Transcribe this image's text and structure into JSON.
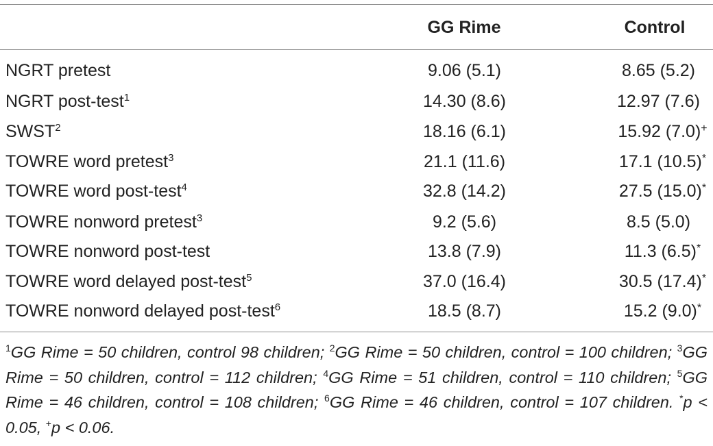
{
  "table": {
    "headers": [
      "",
      "GG Rime",
      "Control"
    ],
    "rows": [
      {
        "label": "NGRT pretest",
        "sup": "",
        "gg": "9.06 (5.1)",
        "control": "8.65 (5.2)",
        "mark": ""
      },
      {
        "label": "NGRT post-test",
        "sup": "1",
        "gg": "14.30 (8.6)",
        "control": "12.97 (7.6)",
        "mark": ""
      },
      {
        "label": "SWST",
        "sup": "2",
        "gg": "18.16 (6.1)",
        "control": "15.92 (7.0)",
        "mark": "+"
      },
      {
        "label": "TOWRE word pretest",
        "sup": "3",
        "gg": "21.1 (11.6)",
        "control": "17.1 (10.5)",
        "mark": "*"
      },
      {
        "label": "TOWRE word post-test",
        "sup": "4",
        "gg": "32.8 (14.2)",
        "control": "27.5 (15.0)",
        "mark": "*"
      },
      {
        "label": "TOWRE nonword pretest",
        "sup": "3",
        "gg": "9.2 (5.6)",
        "control": "8.5 (5.0)",
        "mark": ""
      },
      {
        "label": "TOWRE nonword post-test",
        "sup": "",
        "gg": "13.8 (7.9)",
        "control": "11.3 (6.5)",
        "mark": "*"
      },
      {
        "label": "TOWRE word delayed post-test",
        "sup": "5",
        "gg": "37.0 (16.4)",
        "control": "30.5 (17.4)",
        "mark": "*"
      },
      {
        "label": "TOWRE nonword delayed post-test",
        "sup": "6",
        "gg": "18.5 (8.7)",
        "control": "15.2 (9.0)",
        "mark": "*"
      }
    ]
  },
  "footnotes": [
    {
      "sup": "1",
      "text": "GG Rime = 50 children, control 98 children; "
    },
    {
      "sup": "2",
      "text": "GG Rime = 50 children, control = 100 children; "
    },
    {
      "sup": "3",
      "text": "GG Rime = 50 children, control = 112 children; "
    },
    {
      "sup": "4",
      "text": "GG Rime = 51 children, control = 110 children; "
    },
    {
      "sup": "5",
      "text": "GG Rime = 46 children, control = 108 children; "
    },
    {
      "sup": "6",
      "text": "GG Rime = 46 children, control = 107 children. "
    },
    {
      "sup": "*",
      "text": "p < 0.05, "
    },
    {
      "sup": "+",
      "text": "p < 0.06."
    }
  ]
}
